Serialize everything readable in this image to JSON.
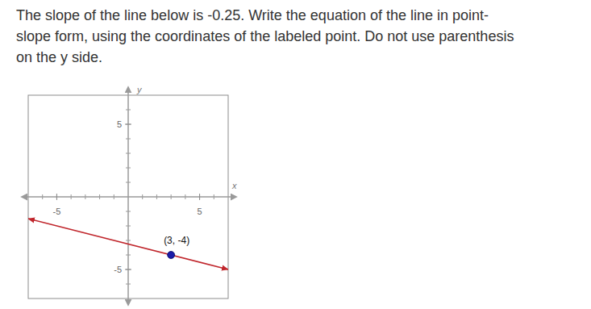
{
  "chart_data": {
    "type": "line",
    "question_lines": [
      "The slope of the line below is -0.25. Write the equation of the line in point-",
      "slope form, using the coordinates of the labeled point. Do not use parenthesis",
      "on the y side."
    ],
    "x_label": "x",
    "y_label": "y",
    "xlim": [
      -7,
      7
    ],
    "ylim": [
      -7,
      7
    ],
    "xticks": [
      -5,
      5
    ],
    "yticks": [
      -5,
      5
    ],
    "grid": false,
    "series": [
      {
        "type": "line",
        "color": "#c0262c",
        "marker": "arrow",
        "x": [
          -7,
          7
        ],
        "values": [
          -1.5,
          -5
        ]
      },
      {
        "type": "scatter",
        "color": "#1c1ca8",
        "marker": "circle",
        "x": [
          3
        ],
        "values": [
          -4
        ],
        "labels": [
          "(3, -4)"
        ]
      }
    ]
  }
}
